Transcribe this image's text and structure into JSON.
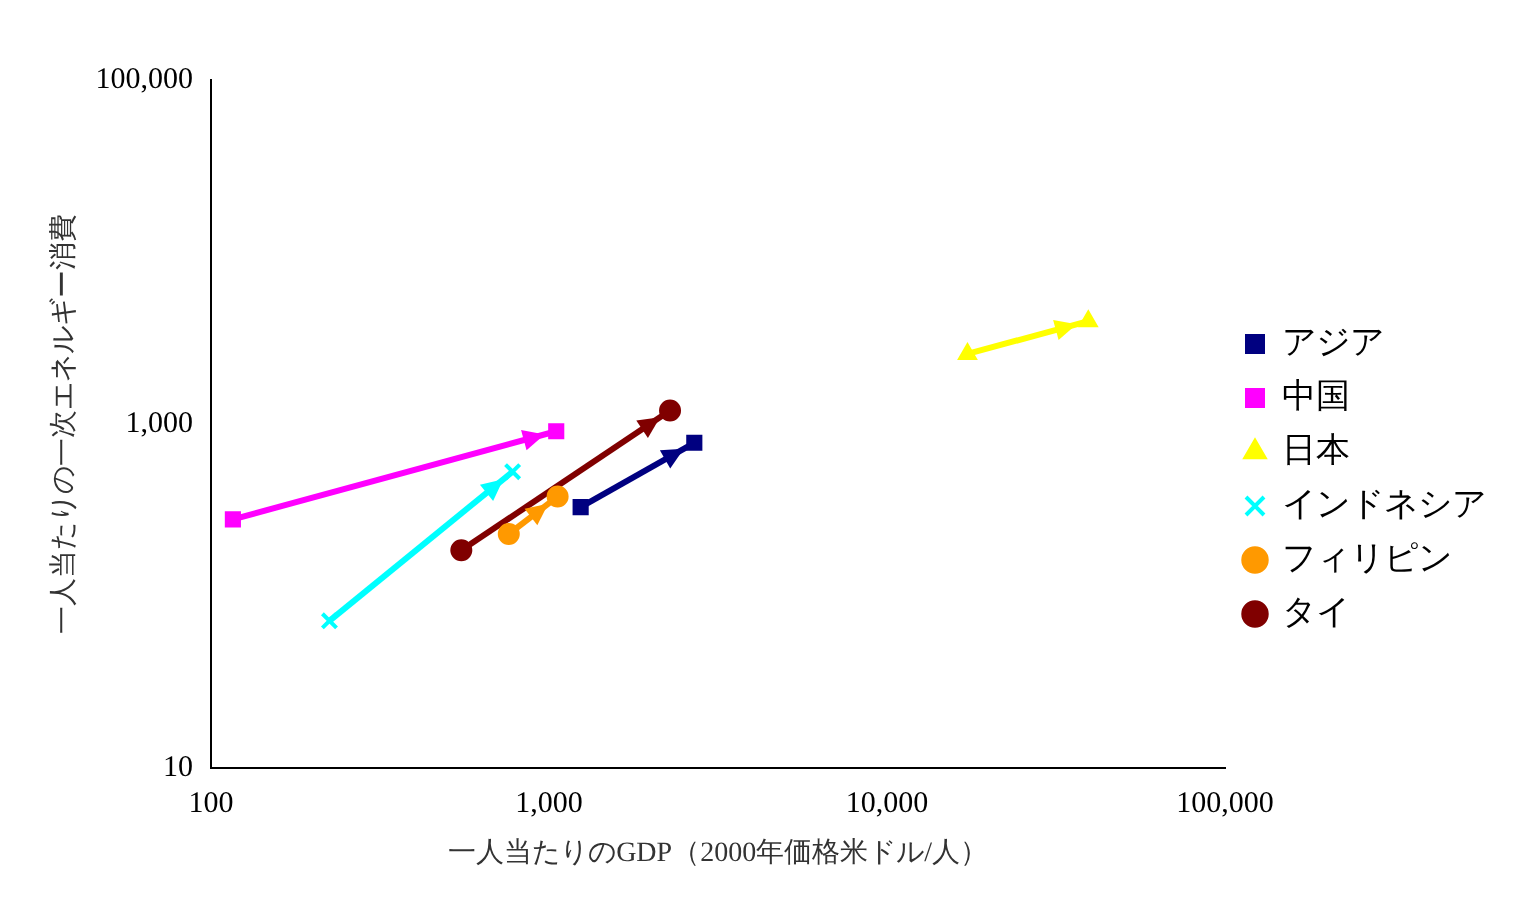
{
  "chart_data": {
    "type": "line",
    "xlabel": "一人当たりのGDP（2000年価格米ドル/人）",
    "ylabel": "一人当たりの一次エネルギー消費",
    "log": "xy",
    "grid": false,
    "legend": "right",
    "xlim": [
      100,
      100000
    ],
    "ylim": [
      10,
      100000
    ],
    "xticks": [
      {
        "value": 100,
        "label": "100"
      },
      {
        "value": 1000,
        "label": "1,000"
      },
      {
        "value": 10000,
        "label": "10,000"
      },
      {
        "value": 100000,
        "label": "100,000"
      }
    ],
    "yticks": [
      {
        "value": 10,
        "label": "10"
      },
      {
        "value": 1000,
        "label": "1,000"
      },
      {
        "value": 100000,
        "label": "100,000"
      }
    ],
    "series": [
      {
        "name": "アジア",
        "color": "#000080",
        "marker": "square",
        "x": [
          1240,
          2690
        ],
        "values": [
          330,
          780
        ]
      },
      {
        "name": "中国",
        "color": "#ff00ff",
        "marker": "square",
        "x": [
          116,
          1050
        ],
        "values": [
          280,
          910
        ]
      },
      {
        "name": "日本",
        "color": "#ffff00",
        "marker": "triangle",
        "x": [
          17300,
          39400
        ],
        "values": [
          2560,
          3970
        ]
      },
      {
        "name": "インドネシア",
        "color": "#00ffff",
        "marker": "cross",
        "x": [
          224,
          780
        ],
        "values": [
          72,
          530
        ]
      },
      {
        "name": "フィリピン",
        "color": "#ff9900",
        "marker": "circle",
        "x": [
          760,
          1060
        ],
        "values": [
          230,
          380
        ]
      },
      {
        "name": "タイ",
        "color": "#800000",
        "marker": "circle",
        "x": [
          550,
          2280
        ],
        "values": [
          185,
          1200
        ]
      }
    ]
  }
}
